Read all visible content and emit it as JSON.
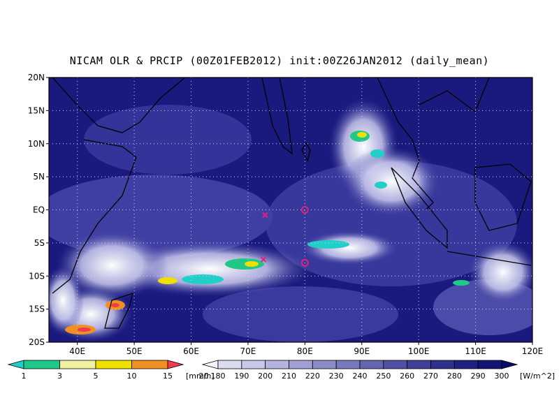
{
  "title": "NICAM OLR & PRCIP (00Z01FEB2012) init:00Z26JAN2012 (daily_mean)",
  "map": {
    "lon_ticks": [
      "40E",
      "50E",
      "60E",
      "70E",
      "80E",
      "90E",
      "100E",
      "110E",
      "120E"
    ],
    "lat_ticks": [
      "20N",
      "15N",
      "10N",
      "5N",
      "EQ",
      "5S",
      "10S",
      "15S",
      "20S"
    ],
    "lon_range": [
      35,
      120
    ],
    "lat_range": [
      -20,
      20
    ],
    "gridlines": "dotted",
    "markers": [
      {
        "symbol": "x",
        "lon": 73,
        "lat": -0.8,
        "color": "#e0207a"
      },
      {
        "symbol": "x",
        "lon": 72.7,
        "lat": -7.5,
        "color": "#e0207a"
      },
      {
        "symbol": "circle",
        "lon": 80,
        "lat": 0,
        "color": "#e0207a"
      },
      {
        "symbol": "circle",
        "lon": 80,
        "lat": -8,
        "color": "#e0207a"
      }
    ]
  },
  "precip_colorbar": {
    "ticks": [
      "1",
      "3",
      "5",
      "10",
      "15",
      "20"
    ],
    "unit": "[mm/h]",
    "colors": [
      "#20d0c8",
      "#20c888",
      "#f0f0a0",
      "#f0e000",
      "#f09020",
      "#f03c50"
    ]
  },
  "olr_colorbar": {
    "ticks": [
      "180",
      "190",
      "200",
      "210",
      "220",
      "230",
      "240",
      "250",
      "260",
      "270",
      "280",
      "290",
      "300"
    ],
    "unit": "[W/m^2]",
    "colors": [
      "#f4f4fc",
      "#dcdcf0",
      "#c8c8e8",
      "#b4b4e0",
      "#a0a0d4",
      "#8c8cc8",
      "#7878bc",
      "#6464b0",
      "#5050a4",
      "#404098",
      "#30308c",
      "#202080",
      "#141474",
      "#0c0c68"
    ]
  }
}
